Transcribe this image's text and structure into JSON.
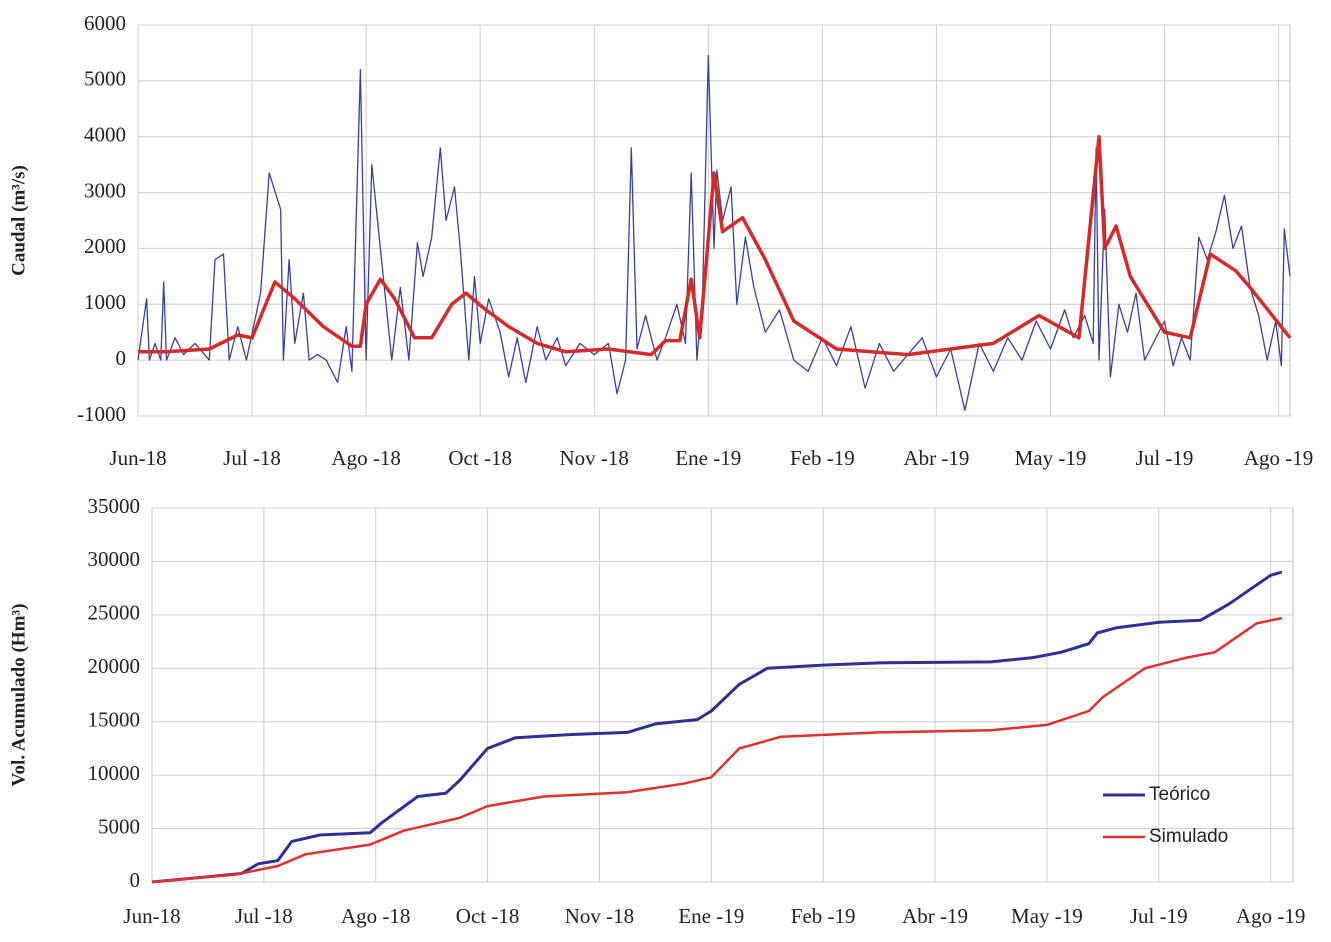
{
  "chart_data": [
    {
      "type": "line",
      "ylabel": "Caudal (m³/s)",
      "xlim": [
        0,
        404
      ],
      "ylim": [
        -1000,
        6000
      ],
      "yticks": [
        -1000,
        0,
        1000,
        2000,
        3000,
        4000,
        5000,
        6000
      ],
      "xticks": [
        {
          "value": 0,
          "label": "Jun-18"
        },
        {
          "value": 40,
          "label": "Jul -18"
        },
        {
          "value": 80,
          "label": "Ago -18"
        },
        {
          "value": 120,
          "label": "Oct -18"
        },
        {
          "value": 160,
          "label": "Nov -18"
        },
        {
          "value": 200,
          "label": "Ene -19"
        },
        {
          "value": 240,
          "label": "Feb -19"
        },
        {
          "value": 280,
          "label": "Abr -19"
        },
        {
          "value": 320,
          "label": "May -19"
        },
        {
          "value": 360,
          "label": "Jul -19"
        },
        {
          "value": 400,
          "label": "Ago -19"
        }
      ],
      "grid": true,
      "series": [
        {
          "color": "#3b3fa0",
          "width": 1.3,
          "x": [
            0,
            3,
            4,
            6,
            8,
            9,
            10,
            13,
            16,
            20,
            25,
            27,
            30,
            32,
            35,
            38,
            43,
            46,
            50,
            51,
            53,
            55,
            58,
            60,
            63,
            66,
            70,
            73,
            75,
            78,
            80,
            82,
            84,
            87,
            89,
            92,
            95,
            98,
            100,
            103,
            106,
            108,
            111,
            113,
            116,
            118,
            120,
            123,
            127,
            130,
            133,
            136,
            140,
            143,
            147,
            150,
            155,
            160,
            165,
            168,
            171,
            173,
            175,
            178,
            182,
            185,
            189,
            192,
            194,
            196,
            198,
            200,
            202,
            203,
            205,
            208,
            210,
            213,
            216,
            220,
            225,
            230,
            235,
            240,
            245,
            250,
            255,
            260,
            265,
            270,
            275,
            280,
            285,
            290,
            295,
            300,
            305,
            310,
            315,
            320,
            325,
            328,
            332,
            335,
            336,
            337,
            339,
            341,
            344,
            347,
            350,
            353,
            356,
            360,
            363,
            366,
            369,
            372,
            375,
            378,
            381,
            384,
            387,
            390,
            393,
            396,
            399,
            401,
            402,
            404
          ],
          "values": [
            0,
            1100,
            0,
            300,
            0,
            1400,
            0,
            400,
            100,
            300,
            0,
            1800,
            1900,
            0,
            600,
            0,
            1200,
            3350,
            2700,
            0,
            1800,
            300,
            1200,
            0,
            100,
            0,
            -400,
            600,
            -200,
            5200,
            0,
            3500,
            2500,
            1000,
            0,
            1300,
            0,
            2100,
            1500,
            2200,
            3800,
            2500,
            3100,
            2000,
            0,
            1500,
            300,
            1100,
            500,
            -300,
            400,
            -400,
            600,
            0,
            400,
            -100,
            300,
            100,
            300,
            -600,
            0,
            3800,
            200,
            800,
            0,
            400,
            1000,
            300,
            3350,
            0,
            1200,
            5450,
            2000,
            3400,
            2500,
            3100,
            1000,
            2200,
            1300,
            500,
            900,
            0,
            -200,
            400,
            -100,
            600,
            -500,
            300,
            -200,
            100,
            400,
            -300,
            200,
            -900,
            300,
            -200,
            400,
            0,
            700,
            200,
            900,
            400,
            800,
            300,
            3800,
            0,
            2700,
            -300,
            1000,
            500,
            1200,
            0,
            300,
            700,
            -100,
            400,
            0,
            2200,
            1800,
            2300,
            2950,
            2000,
            2400,
            1300,
            800,
            0,
            700,
            -100,
            2350,
            1500
          ]
        },
        {
          "color": "#d42a2a",
          "width": 3.5,
          "x": [
            0,
            10,
            25,
            35,
            40,
            48,
            55,
            65,
            75,
            78,
            80,
            85,
            90,
            97,
            103,
            110,
            115,
            122,
            130,
            140,
            150,
            165,
            180,
            185,
            190,
            194,
            197,
            202,
            205,
            212,
            220,
            230,
            245,
            270,
            300,
            316,
            330,
            337,
            339,
            343,
            348,
            360,
            369,
            376,
            385,
            390,
            404
          ],
          "values": [
            150,
            150,
            200,
            450,
            400,
            1400,
            1100,
            600,
            250,
            250,
            1000,
            1450,
            1100,
            400,
            400,
            1000,
            1200,
            900,
            600,
            300,
            150,
            200,
            100,
            350,
            350,
            1450,
            400,
            3350,
            2300,
            2550,
            1800,
            700,
            200,
            100,
            300,
            800,
            400,
            4000,
            2000,
            2400,
            1500,
            500,
            400,
            1900,
            1600,
            1300,
            400
          ]
        }
      ]
    },
    {
      "type": "line",
      "ylabel": "Vol. Acumulado (Hm³)",
      "xlim": [
        0,
        408
      ],
      "ylim": [
        0,
        35000
      ],
      "yticks": [
        0,
        5000,
        10000,
        15000,
        20000,
        25000,
        30000,
        35000
      ],
      "xticks": [
        {
          "value": 0,
          "label": "Jun-18"
        },
        {
          "value": 40,
          "label": "Jul -18"
        },
        {
          "value": 80,
          "label": "Ago -18"
        },
        {
          "value": 120,
          "label": "Oct -18"
        },
        {
          "value": 160,
          "label": "Nov -18"
        },
        {
          "value": 200,
          "label": "Ene -19"
        },
        {
          "value": 240,
          "label": "Feb -19"
        },
        {
          "value": 280,
          "label": "Abr -19"
        },
        {
          "value": 320,
          "label": "May -19"
        },
        {
          "value": 360,
          "label": "Jul -19"
        },
        {
          "value": 400,
          "label": "Ago -19"
        }
      ],
      "grid": true,
      "legend": "lower right",
      "series": [
        {
          "name": "Teórico",
          "color": "#2e3192",
          "width": 3,
          "x": [
            0,
            20,
            32,
            38,
            45,
            50,
            60,
            78,
            82,
            95,
            105,
            110,
            120,
            130,
            150,
            170,
            180,
            195,
            200,
            210,
            220,
            240,
            260,
            300,
            315,
            325,
            335,
            338,
            345,
            360,
            375,
            385,
            400,
            404
          ],
          "values": [
            0,
            500,
            800,
            1700,
            2000,
            3800,
            4400,
            4600,
            5500,
            8000,
            8300,
            9500,
            12500,
            13500,
            13800,
            14000,
            14800,
            15200,
            16000,
            18500,
            20000,
            20300,
            20500,
            20600,
            21000,
            21500,
            22300,
            23300,
            23800,
            24300,
            24500,
            26000,
            28700,
            29000
          ]
        },
        {
          "name": "Simulado",
          "color": "#e03030",
          "width": 2.5,
          "x": [
            0,
            30,
            45,
            55,
            78,
            90,
            110,
            120,
            140,
            170,
            190,
            200,
            210,
            225,
            260,
            300,
            320,
            335,
            340,
            355,
            370,
            380,
            395,
            404
          ],
          "values": [
            0,
            700,
            1500,
            2600,
            3500,
            4800,
            6000,
            7100,
            8000,
            8400,
            9200,
            9800,
            12500,
            13600,
            14000,
            14200,
            14700,
            16000,
            17300,
            20000,
            21000,
            21500,
            24200,
            24700
          ]
        }
      ]
    }
  ]
}
